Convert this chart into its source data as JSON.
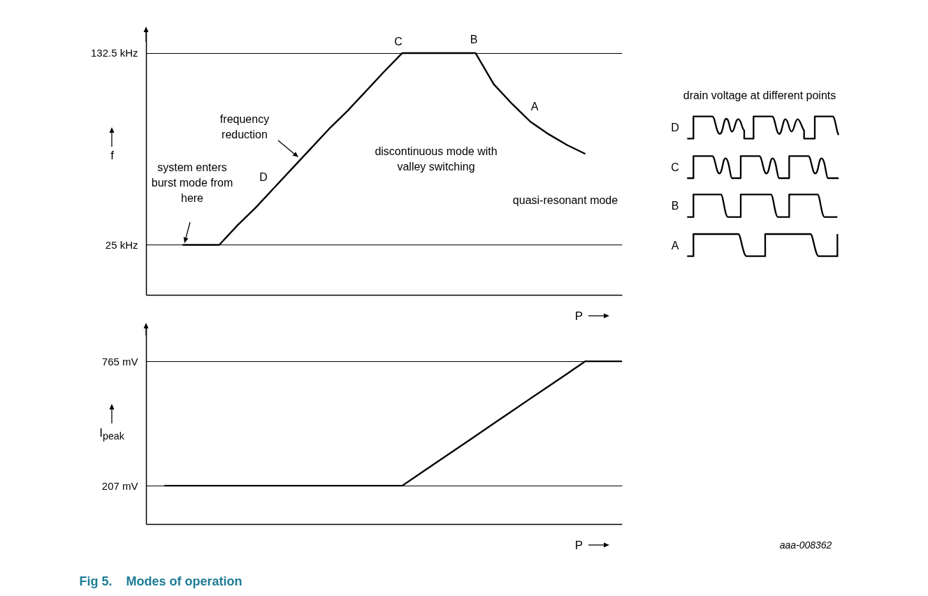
{
  "chart_data": [
    {
      "type": "line",
      "title": "Fig 5.    Modes of operation",
      "ylabel": "f",
      "xlabel": "P",
      "categories": [
        null,
        null,
        null,
        null,
        null,
        null,
        null,
        null,
        null,
        null,
        null,
        null,
        null,
        null,
        null,
        null,
        null,
        null,
        null,
        null,
        null,
        null,
        null,
        null,
        null,
        null,
        null
      ],
      "series": [
        {
          "color": "#000000",
          "values": [
            null,
            null,
            25,
            25,
            25,
            36,
            46,
            57,
            68,
            79,
            90,
            100,
            111,
            122,
            132.5,
            132.5,
            132.5,
            132.5,
            132.5,
            115,
            104,
            94,
            87,
            81,
            76,
            null,
            null
          ]
        }
      ],
      "ylim": [
        -3,
        145
      ],
      "yticks": [
        {
          "value": 25,
          "label": "25 kHz"
        },
        {
          "value": 132.5,
          "label": "132.5 kHz"
        }
      ],
      "grid": "y",
      "tick_labels": "y",
      "annotations": [
        "C",
        "B",
        "A",
        "D",
        "frequency reduction",
        "system enters burst mode from here",
        "discontinuous mode with valley switching",
        "quasi-resonant mode",
        "drain voltage at different points",
        "D",
        "C",
        "B",
        "A"
      ]
    },
    {
      "type": "line",
      "ylabel": "I$_{peak}$",
      "xlabel": "P",
      "categories": [
        null,
        null,
        null,
        null,
        null,
        null,
        null,
        null,
        null,
        null,
        null,
        null,
        null,
        null,
        null,
        null,
        null,
        null,
        null,
        null,
        null,
        null,
        null,
        null,
        null,
        null,
        null
      ],
      "series": [
        {
          "color": "#000000",
          "values": [
            null,
            207,
            207,
            207,
            207,
            207,
            207,
            207,
            207,
            207,
            207,
            207,
            207,
            207,
            207,
            263,
            319,
            374,
            430,
            486,
            542,
            598,
            653,
            709,
            765,
            765,
            765
          ]
        }
      ],
      "ylim": [
        35,
        922
      ],
      "yticks": [
        {
          "value": 207,
          "label": "207 mV"
        },
        {
          "value": 765,
          "label": "765 mV"
        }
      ],
      "grid": "y",
      "tick_labels": "y",
      "annotations": [
        "aaa-008362"
      ]
    }
  ]
}
